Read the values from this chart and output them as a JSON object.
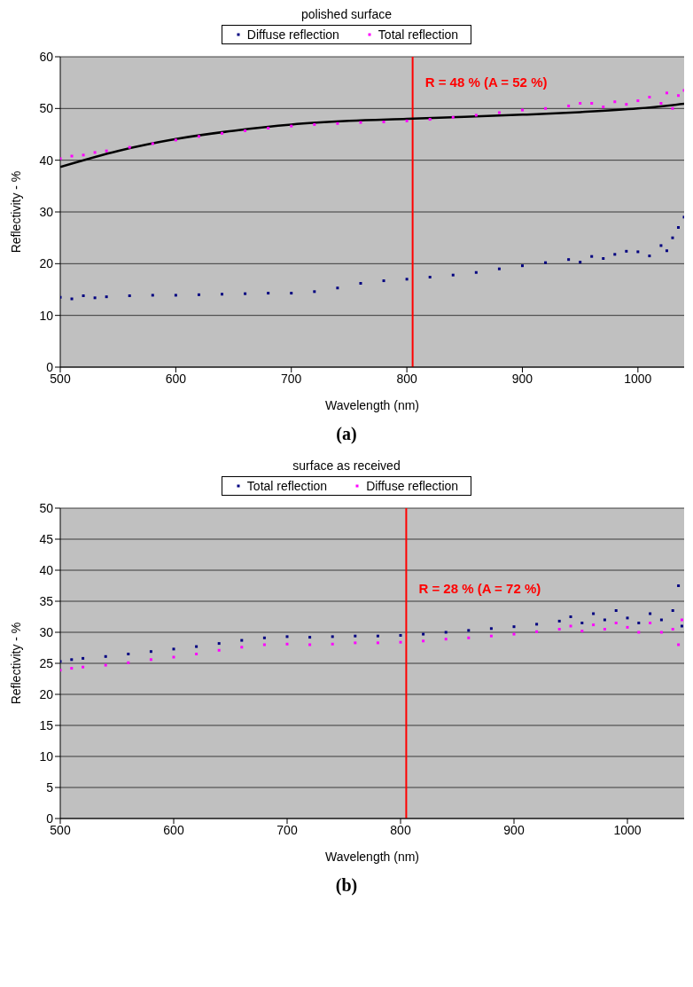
{
  "chart_data": [
    {
      "type": "scatter",
      "title": "polished surface",
      "xlabel": "Wavelength (nm)",
      "ylabel": "Reflectivity - %",
      "xlim": [
        500,
        1040
      ],
      "xticks": [
        500,
        600,
        700,
        800,
        900,
        1000
      ],
      "ylim": [
        0,
        60
      ],
      "yticks": [
        0,
        10,
        20,
        30,
        40,
        50,
        60
      ],
      "grid": "y",
      "legend": "top",
      "marker": "square",
      "ref_lines": [
        {
          "axis": "x",
          "value": 805,
          "color": "#ff0000"
        }
      ],
      "annotations": [
        {
          "text": "R = 48 % (A = 52 %)",
          "x": 805,
          "y": 55
        },
        "(a)"
      ],
      "series": [
        {
          "name": "Diffuse reflection",
          "color": "#000080",
          "x": [
            500,
            510,
            520,
            530,
            540,
            560,
            580,
            600,
            620,
            640,
            660,
            680,
            700,
            720,
            740,
            760,
            780,
            800,
            820,
            840,
            860,
            880,
            900,
            920,
            940,
            950,
            960,
            970,
            980,
            990,
            1000,
            1010,
            1020,
            1025,
            1030,
            1035,
            1040
          ],
          "values": [
            13.5,
            13.2,
            13.8,
            13.4,
            13.6,
            13.8,
            13.9,
            13.9,
            14.0,
            14.1,
            14.2,
            14.3,
            14.3,
            14.6,
            15.3,
            16.2,
            16.7,
            17.0,
            17.4,
            17.8,
            18.3,
            19.0,
            19.6,
            20.2,
            20.8,
            20.3,
            21.4,
            21.0,
            21.8,
            22.4,
            22.3,
            21.5,
            23.5,
            22.5,
            25.0,
            27.0,
            29.0
          ]
        },
        {
          "name": "Total reflection",
          "color": "#ff00ff",
          "x": [
            500,
            510,
            520,
            530,
            540,
            560,
            580,
            600,
            620,
            640,
            660,
            680,
            700,
            720,
            740,
            760,
            780,
            800,
            820,
            840,
            860,
            880,
            900,
            920,
            940,
            950,
            960,
            970,
            980,
            990,
            1000,
            1010,
            1020,
            1025,
            1030,
            1035,
            1040
          ],
          "values": [
            40.3,
            40.8,
            41.0,
            41.5,
            41.8,
            42.5,
            43.2,
            43.9,
            44.6,
            45.2,
            45.7,
            46.2,
            46.6,
            46.9,
            47.1,
            47.3,
            47.4,
            47.6,
            47.9,
            48.3,
            48.7,
            49.2,
            49.7,
            50.0,
            50.5,
            51.0,
            51.0,
            50.3,
            51.3,
            50.8,
            51.5,
            52.2,
            51.0,
            53.0,
            50.0,
            52.5,
            53.5
          ]
        },
        {
          "type": "line",
          "color": "#000000",
          "marker": "none",
          "x": [
            500,
            550,
            600,
            650,
            700,
            750,
            800,
            850,
            900,
            950,
            1000,
            1040
          ],
          "values": [
            38.7,
            41.8,
            44.1,
            45.7,
            46.9,
            47.6,
            48.0,
            48.4,
            48.8,
            49.3,
            50.0,
            50.9
          ]
        }
      ]
    },
    {
      "type": "scatter",
      "title": "surface as received",
      "xlabel": "Wavelength (nm)",
      "ylabel": "Reflectivity - %",
      "xlim": [
        500,
        1050
      ],
      "xticks": [
        500,
        600,
        700,
        800,
        900,
        1000
      ],
      "ylim": [
        0,
        50
      ],
      "yticks": [
        0,
        5,
        10,
        15,
        20,
        25,
        30,
        35,
        40,
        45,
        50
      ],
      "grid": "y",
      "legend": "top",
      "marker": "square",
      "ref_lines": [
        {
          "axis": "x",
          "value": 805,
          "color": "#ff0000"
        }
      ],
      "annotations": [
        {
          "text": "R = 28 % (A = 72 %)",
          "x": 805,
          "y": 37
        },
        "(b)"
      ],
      "series": [
        {
          "name": "Total reflection",
          "color": "#000080",
          "x": [
            500,
            510,
            520,
            540,
            560,
            580,
            600,
            620,
            640,
            660,
            680,
            700,
            720,
            740,
            760,
            780,
            800,
            820,
            840,
            860,
            880,
            900,
            920,
            940,
            950,
            960,
            970,
            980,
            990,
            1000,
            1010,
            1020,
            1030,
            1040,
            1045,
            1048
          ],
          "values": [
            25.3,
            25.6,
            25.8,
            26.1,
            26.5,
            26.9,
            27.3,
            27.7,
            28.2,
            28.7,
            29.1,
            29.3,
            29.2,
            29.3,
            29.4,
            29.4,
            29.5,
            29.7,
            30.0,
            30.3,
            30.6,
            30.9,
            31.3,
            31.8,
            32.5,
            31.5,
            33.0,
            32.0,
            33.5,
            32.3,
            31.5,
            33.0,
            32.0,
            33.5,
            37.5,
            31.0
          ]
        },
        {
          "name": "Diffuse reflection",
          "color": "#ff00ff",
          "x": [
            500,
            510,
            520,
            540,
            560,
            580,
            600,
            620,
            640,
            660,
            680,
            700,
            720,
            740,
            760,
            780,
            800,
            820,
            840,
            860,
            880,
            900,
            920,
            940,
            950,
            960,
            970,
            980,
            990,
            1000,
            1010,
            1020,
            1030,
            1040,
            1045,
            1048
          ],
          "values": [
            23.9,
            24.2,
            24.4,
            24.7,
            25.1,
            25.6,
            26.0,
            26.5,
            27.1,
            27.6,
            28.0,
            28.1,
            28.0,
            28.1,
            28.3,
            28.3,
            28.4,
            28.6,
            28.9,
            29.1,
            29.4,
            29.7,
            30.1,
            30.5,
            31.0,
            30.2,
            31.2,
            30.5,
            31.5,
            30.8,
            30.0,
            31.5,
            30.0,
            30.5,
            28.0,
            32.0
          ]
        }
      ]
    }
  ]
}
